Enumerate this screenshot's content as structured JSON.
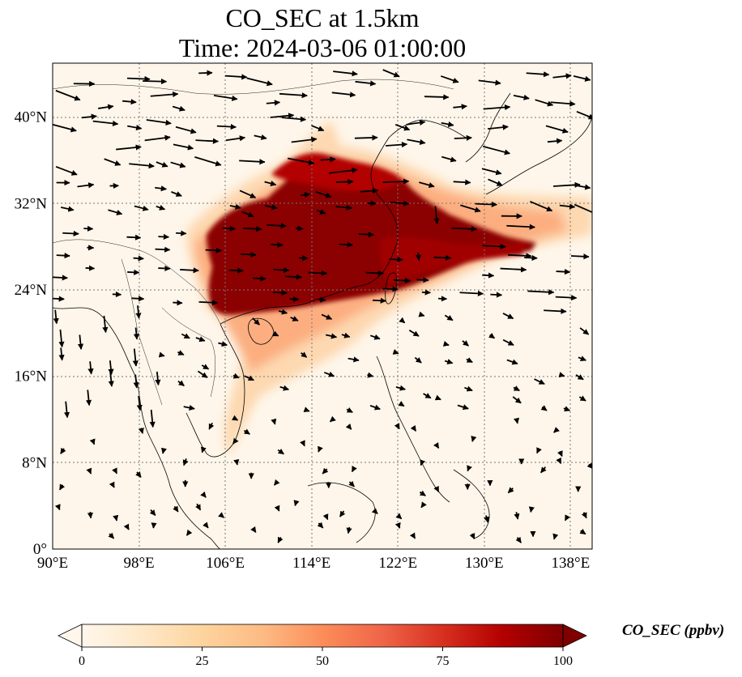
{
  "title": {
    "line1": "CO_SEC at 1.5km",
    "line2": "Time: 2024-03-06 01:00:00"
  },
  "map": {
    "projection": "PlateCarree",
    "lon_range": [
      90,
      140
    ],
    "lat_range": [
      0,
      45
    ],
    "gridlines": "dotted grey",
    "coastlines": true,
    "borders": true,
    "lon_ticks": [
      {
        "value": 90,
        "label": "90°E"
      },
      {
        "value": 98,
        "label": "98°E"
      },
      {
        "value": 106,
        "label": "106°E"
      },
      {
        "value": 114,
        "label": "114°E"
      },
      {
        "value": 122,
        "label": "122°E"
      },
      {
        "value": 130,
        "label": "130°E"
      },
      {
        "value": 138,
        "label": "138°E"
      }
    ],
    "lat_ticks": [
      {
        "value": 0,
        "label": "0°"
      },
      {
        "value": 8,
        "label": "8°N"
      },
      {
        "value": 16,
        "label": "16°N"
      },
      {
        "value": 24,
        "label": "24°N"
      },
      {
        "value": 32,
        "label": "32°N"
      },
      {
        "value": 40,
        "label": "40°N"
      }
    ],
    "field": "CO_SEC concentration (filled contours, OrRd colormap)",
    "vectors": "wind arrows"
  },
  "colorbar": {
    "label": "CO_SEC (ppbv)",
    "min": 0,
    "max": 100,
    "extend": "both",
    "ticks": [
      "0",
      "25",
      "50",
      "75",
      "100"
    ],
    "colors": [
      "#fff7ec",
      "#fee8c8",
      "#fdd49e",
      "#fdbb84",
      "#fc8d59",
      "#ef6548",
      "#d7301f",
      "#b30000",
      "#7f0000"
    ]
  }
}
